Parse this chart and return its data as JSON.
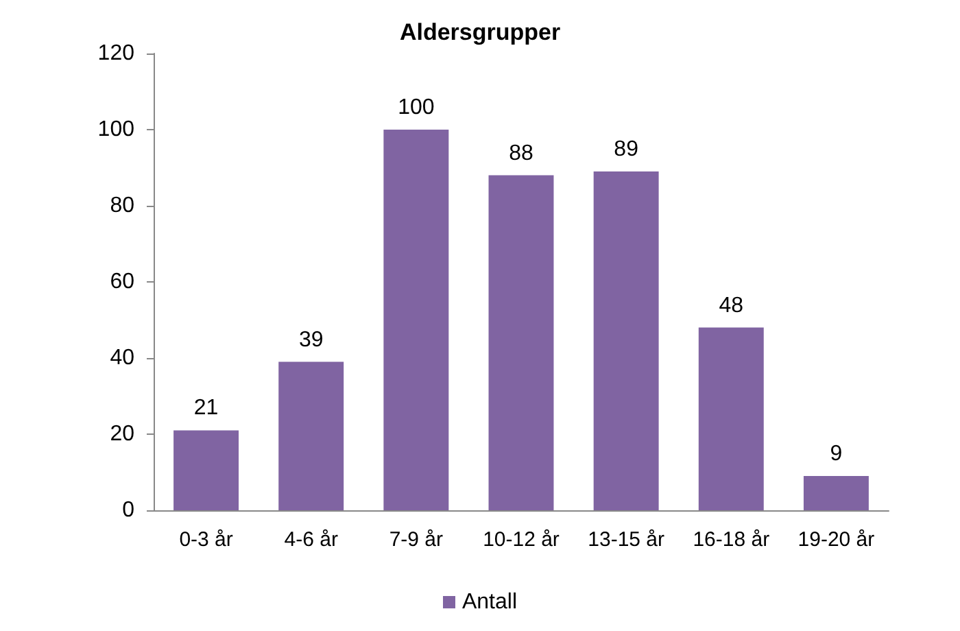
{
  "chart_data": {
    "type": "bar",
    "title": "Aldersgrupper",
    "categories": [
      "0-3 år",
      "4-6 år",
      "7-9 år",
      "10-12 år",
      "13-15 år",
      "16-18 år",
      "19-20 år"
    ],
    "series": [
      {
        "name": "Antall",
        "color": "#8064a2",
        "values": [
          21,
          39,
          100,
          88,
          89,
          48,
          9
        ]
      }
    ],
    "ylim": [
      0,
      120
    ],
    "yticks": [
      0,
      20,
      40,
      60,
      80,
      100,
      120
    ],
    "grid": false,
    "legend": "bottom",
    "data_labels": true
  }
}
